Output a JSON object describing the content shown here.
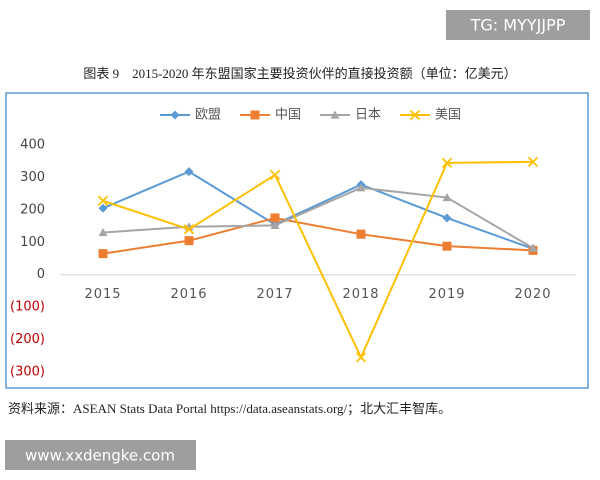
{
  "watermark_top": "TG: MYYJJPP",
  "watermark_bottom": "www.xxdengke.com",
  "source": "资料来源：ASEAN Stats Data Portal https://data.aseanstats.org/；北大汇丰智库。",
  "chart_data": {
    "type": "line",
    "title": "图表 9　2015-2020 年东盟国家主要投资伙伴的直接投资额（单位：亿美元）",
    "categories": [
      "2015",
      "2016",
      "2017",
      "2018",
      "2019",
      "2020"
    ],
    "series": [
      {
        "name": "欧盟",
        "color": "#5b9bd5",
        "marker": "diamond",
        "values": [
          205,
          318,
          155,
          278,
          175,
          80
        ]
      },
      {
        "name": "中国",
        "color": "#ed7d31",
        "marker": "square",
        "values": [
          65,
          105,
          175,
          125,
          88,
          75
        ]
      },
      {
        "name": "日本",
        "color": "#a5a5a5",
        "marker": "triangle",
        "values": [
          130,
          148,
          152,
          268,
          238,
          82
        ]
      },
      {
        "name": "美国",
        "color": "#ffc000",
        "marker": "x",
        "values": [
          228,
          140,
          308,
          -255,
          345,
          348
        ]
      }
    ],
    "ylim": [
      -300,
      400
    ],
    "yticks": [
      400,
      300,
      200,
      100,
      0,
      {
        "value": -100,
        "label": "(100)"
      },
      {
        "value": -200,
        "label": "(200)"
      },
      {
        "value": -300,
        "label": "(300)"
      }
    ],
    "negative_tick_color": "#c00000",
    "legend": "top",
    "grid": false
  }
}
